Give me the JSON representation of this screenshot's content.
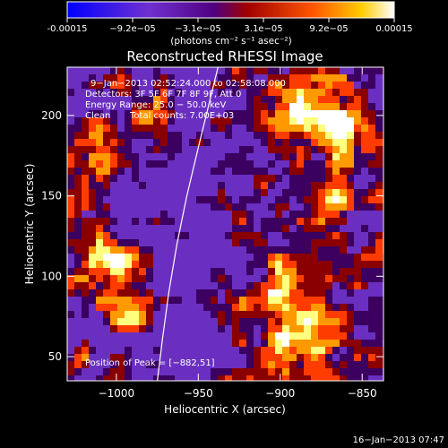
{
  "colorbar": {
    "tick_labels": [
      "-0.00015",
      "−9.2e−05",
      "−3.1e−05",
      "3.1e−05",
      "9.2e−05",
      "0.00015"
    ],
    "units": "(photons cm⁻² s⁻¹ asec⁻²)",
    "min": -0.00015,
    "max": 0.00015
  },
  "info": {
    "time_range": "9−Jan−2013 02:52:24.000 to 02:58:08.000",
    "detectors": "Detectors: 3F 5F 6F 7F 8F 9F, Att 0",
    "energy": "Energy Range: 25.0 − 50.0 keV",
    "method": "Clean",
    "counts": "Total counts: 7.00E+03",
    "peak": "Position of Peak = [−882,51]"
  },
  "footer": {
    "timestamp": "16−Jan−2013 07:47"
  },
  "chart_data": {
    "type": "heatmap",
    "title": "Reconstructed RHESSI Image",
    "xlabel": "Heliocentric X (arcsec)",
    "ylabel": "Heliocentric Y (arcsec)",
    "xlim": [
      -1030,
      -837
    ],
    "ylim": [
      35,
      230
    ],
    "xticks": [
      -1000,
      -950,
      -900,
      -850
    ],
    "yticks": [
      50,
      100,
      150,
      200
    ],
    "xtick_labels": [
      "−1000",
      "−950",
      "−900",
      "−850"
    ],
    "ytick_labels": [
      "50",
      "100",
      "150",
      "200"
    ],
    "limb_curve": [
      [
        -975,
        35
      ],
      [
        -972,
        60
      ],
      [
        -968,
        90
      ],
      [
        -963,
        120
      ],
      [
        -957,
        150
      ],
      [
        -950,
        180
      ],
      [
        -944,
        205
      ],
      [
        -938,
        230
      ]
    ],
    "peak": [
      -882,
      51
    ],
    "grid": false,
    "colormap": [
      "#0000ff",
      "#6a2fc0",
      "#3b0060",
      "#8a0000",
      "#ff3c00",
      "#ff9900",
      "#ffff80",
      "#ffffff"
    ]
  }
}
